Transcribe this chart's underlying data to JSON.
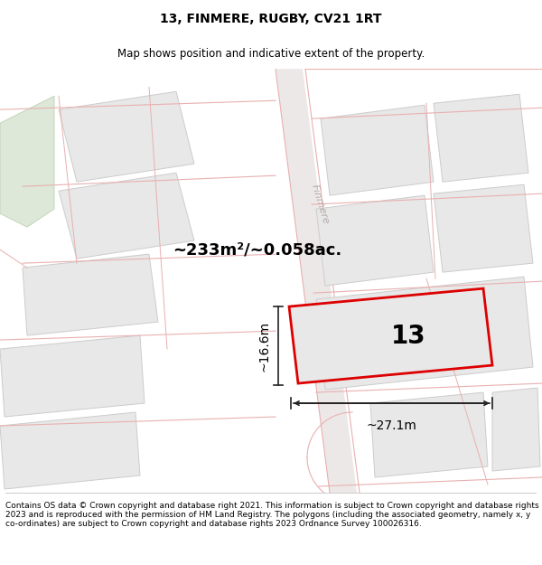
{
  "title": "13, FINMERE, RUGBY, CV21 1RT",
  "subtitle": "Map shows position and indicative extent of the property.",
  "footer": "Contains OS data © Crown copyright and database right 2021. This information is subject to Crown copyright and database rights 2023 and is reproduced with the permission of HM Land Registry. The polygons (including the associated geometry, namely x, y co-ordinates) are subject to Crown copyright and database rights 2023 Ordnance Survey 100026316.",
  "area_label": "~233m²/~0.058ac.",
  "plot_number": "13",
  "width_label": "~27.1m",
  "height_label": "~16.6m",
  "bg_color": "#f7f5f5",
  "map_bg": "#f7f5f5",
  "building_fill": "#e8e8e8",
  "building_edge": "#cccccc",
  "road_line": "#e8b0b0",
  "plot_border": "#dd0000",
  "dim_color": "#222222",
  "street_color": "#b8a8a8",
  "green_fill": "#dde8d8",
  "green_edge": "#c0d0b8",
  "title_fontsize": 10,
  "subtitle_fontsize": 8.5,
  "footer_fontsize": 6.5
}
